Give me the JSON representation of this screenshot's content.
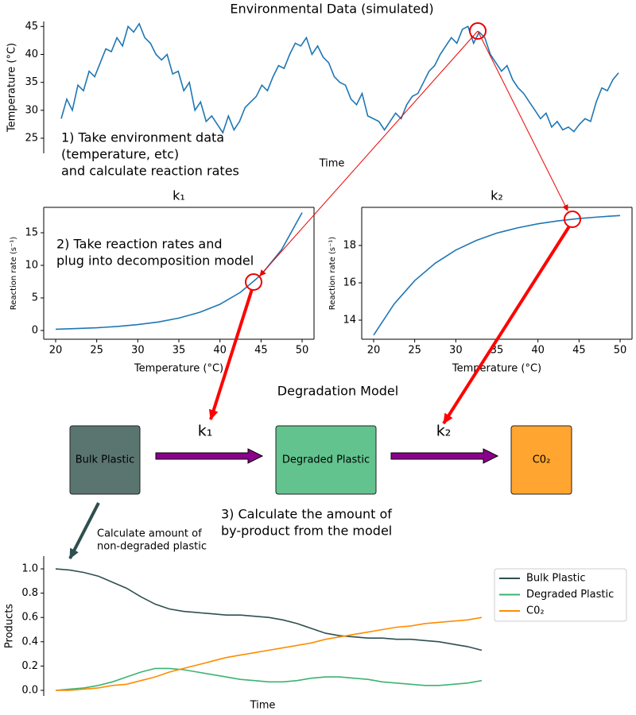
{
  "chart_data": [
    {
      "type": "line",
      "title": "Environmental Data (simulated)",
      "x_label": "Time",
      "y_label": "Temperature (°C)",
      "color": "#1f77b4",
      "spines": [
        "left"
      ],
      "values": [
        28.5,
        32,
        30,
        34.5,
        33.5,
        37,
        36,
        38.5,
        41,
        40.5,
        43,
        41.5,
        45,
        44,
        45.5,
        43,
        42,
        40,
        39,
        40,
        36.5,
        37,
        33.5,
        35,
        30,
        31.5,
        28,
        29,
        27.5,
        26,
        29,
        26.5,
        28,
        30.5,
        31.5,
        32.5,
        34.5,
        33.5,
        36,
        38,
        37.5,
        40,
        42,
        41.5,
        43,
        40,
        41.5,
        39.5,
        38.5,
        36,
        35,
        34.5,
        32,
        31,
        33,
        29,
        28.5,
        28,
        26.5,
        28,
        29.5,
        28.5,
        31,
        32.5,
        33,
        35,
        37,
        38,
        40,
        41.5,
        43,
        42,
        44.5,
        45,
        42,
        44,
        43,
        40,
        38.5,
        37,
        38,
        35.5,
        34,
        33,
        31.5,
        30,
        28.5,
        29.5,
        27,
        28,
        26.5,
        27,
        26.2,
        27.5,
        28.5,
        28,
        31.5,
        34,
        33.5,
        35.5,
        36.7
      ],
      "ylim": [
        22.3,
        45.9
      ],
      "yticks": [
        25,
        30,
        35,
        40,
        45
      ]
    },
    {
      "type": "line",
      "title": "k₁",
      "x_label": "Temperature (°C)",
      "y_label": "Reaction rate (s⁻¹)",
      "color": "#1f77b4",
      "spines": [
        "left",
        "right",
        "top",
        "bottom"
      ],
      "x": [
        20,
        22.5,
        25,
        27.5,
        30,
        32.5,
        35,
        37.5,
        40,
        42.5,
        45,
        47.5,
        50
      ],
      "values": [
        0.2,
        0.29,
        0.42,
        0.62,
        0.9,
        1.31,
        1.9,
        2.77,
        4.03,
        5.86,
        8.52,
        12.4,
        18.1
      ],
      "xlim": [
        18.55,
        51.45
      ],
      "xticks": [
        20,
        25,
        30,
        35,
        40,
        45,
        50
      ],
      "ylim": [
        -1.34,
        18.9
      ],
      "yticks": [
        0,
        5,
        10,
        15
      ]
    },
    {
      "type": "line",
      "title": "k₂",
      "x_label": "Temperature (°C)",
      "y_label": "Reaction rate (s⁻¹)",
      "color": "#1f77b4",
      "spines": [
        "left",
        "right",
        "top",
        "bottom"
      ],
      "x": [
        20,
        22.5,
        25,
        27.5,
        30,
        32.5,
        35,
        37.5,
        40,
        42.5,
        45,
        47.5,
        50
      ],
      "values": [
        13.2,
        14.87,
        16.12,
        17.05,
        17.75,
        18.27,
        18.66,
        18.94,
        19.16,
        19.32,
        19.44,
        19.53,
        19.6
      ],
      "xlim": [
        18.55,
        51.45
      ],
      "xticks": [
        20,
        25,
        30,
        35,
        40,
        45,
        50
      ],
      "ylim": [
        12.98,
        20.04
      ],
      "yticks": [
        14,
        16,
        18
      ]
    },
    {
      "type": "line",
      "x_label": "Time",
      "y_label": "Products",
      "spines": [
        "left"
      ],
      "legend": "right",
      "series": [
        {
          "name": "Bulk Plastic",
          "color": "#2f4f4f",
          "values": [
            1.0,
            0.99,
            0.97,
            0.94,
            0.89,
            0.84,
            0.77,
            0.71,
            0.67,
            0.65,
            0.64,
            0.63,
            0.62,
            0.62,
            0.61,
            0.6,
            0.58,
            0.55,
            0.51,
            0.47,
            0.45,
            0.44,
            0.43,
            0.43,
            0.42,
            0.42,
            0.41,
            0.4,
            0.38,
            0.36,
            0.33
          ]
        },
        {
          "name": "Degraded Plastic",
          "color": "#3cb371",
          "values": [
            0,
            0.01,
            0.02,
            0.04,
            0.07,
            0.11,
            0.15,
            0.18,
            0.18,
            0.17,
            0.15,
            0.13,
            0.11,
            0.09,
            0.08,
            0.07,
            0.07,
            0.08,
            0.1,
            0.11,
            0.11,
            0.1,
            0.09,
            0.07,
            0.06,
            0.05,
            0.04,
            0.04,
            0.05,
            0.06,
            0.08
          ]
        },
        {
          "name": "C0₂",
          "color": "#ff8c00",
          "values": [
            0,
            0,
            0.01,
            0.02,
            0.04,
            0.05,
            0.08,
            0.11,
            0.15,
            0.18,
            0.21,
            0.24,
            0.27,
            0.29,
            0.31,
            0.33,
            0.35,
            0.37,
            0.39,
            0.42,
            0.44,
            0.46,
            0.48,
            0.5,
            0.52,
            0.53,
            0.55,
            0.56,
            0.57,
            0.58,
            0.6
          ]
        }
      ],
      "ylim": [
        -0.046,
        1.105
      ],
      "yticks": [
        {
          "value": 0,
          "label": "0.0"
        },
        0.2,
        0.4,
        0.6,
        0.8,
        {
          "value": 1,
          "label": "1.0"
        }
      ]
    }
  ],
  "diagram": {
    "title": "Degradation Model",
    "nodes": [
      {
        "label": "Bulk Plastic",
        "color": "#5a7570"
      },
      {
        "label": "Degraded Plastic",
        "color": "#62c38e"
      },
      {
        "label": "C0₂",
        "color": "#ffa530"
      }
    ],
    "edges": [
      {
        "label": "k₁"
      },
      {
        "label": "k₂"
      }
    ]
  },
  "annotations": [
    {
      "lines": [
        "1) Take environment data",
        "(temperature, etc)",
        "and calculate reaction rates"
      ]
    },
    {
      "lines": [
        "2) Take reaction rates and",
        "plug into decomposition model"
      ]
    },
    {
      "lines": [
        "3) Calculate the amount of",
        "by-product from the model"
      ]
    },
    {
      "lines": [
        "Calculate amount of",
        "non-degraded plastic"
      ]
    }
  ]
}
